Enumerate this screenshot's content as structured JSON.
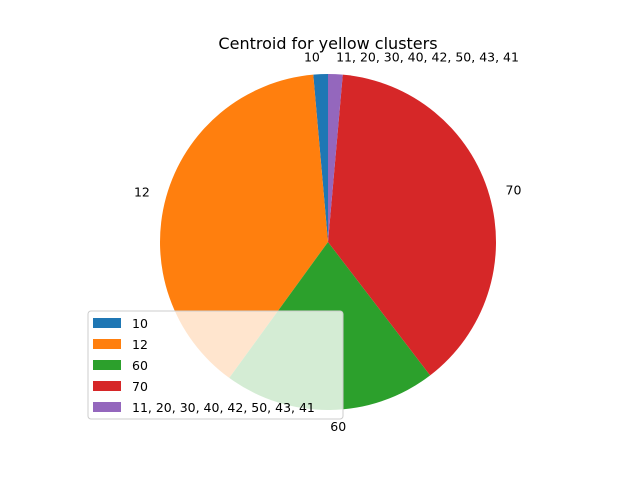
{
  "chart_data": {
    "type": "pie",
    "title": "Centroid for yellow clusters",
    "labels": [
      "10",
      "12",
      "60",
      "70",
      "11, 20, 30, 40, 42, 50, 43, 41"
    ],
    "values": [
      1.4,
      38.6,
      20.4,
      38.2,
      1.4
    ],
    "colors": [
      "#1f77b4",
      "#ff7f0e",
      "#2ca02c",
      "#d62728",
      "#9467bd"
    ],
    "start_angle_deg": 90,
    "direction": "counterclockwise",
    "legend": {
      "placement": "lower-left",
      "entries": [
        "10",
        "12",
        "60",
        "70",
        "11, 20, 30, 40, 42, 50, 43, 41"
      ]
    }
  }
}
